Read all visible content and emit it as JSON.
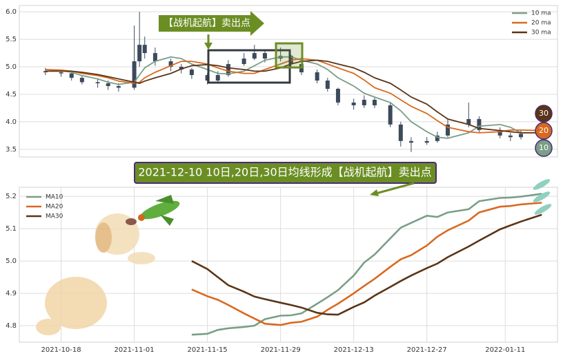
{
  "chart_data": [
    {
      "type": "candlestick",
      "annotation": "【战机起航】卖出点",
      "x": [
        "2021-10-15",
        "2021-10-18",
        "2021-10-20",
        "2021-10-22",
        "2021-10-25",
        "2021-10-27",
        "2021-10-29",
        "2021-11-01",
        "2021-11-02",
        "2021-11-03",
        "2021-11-05",
        "2021-11-08",
        "2021-11-10",
        "2021-11-12",
        "2021-11-15",
        "2021-11-17",
        "2021-11-19",
        "2021-11-22",
        "2021-11-24",
        "2021-11-26",
        "2021-11-29",
        "2021-12-01",
        "2021-12-03",
        "2021-12-06",
        "2021-12-08",
        "2021-12-10",
        "2021-12-13",
        "2021-12-15",
        "2021-12-17",
        "2021-12-20",
        "2021-12-22",
        "2021-12-24",
        "2021-12-27",
        "2021-12-29",
        "2021-12-31",
        "2022-01-04",
        "2022-01-06",
        "2022-01-10",
        "2022-01-12",
        "2022-01-14",
        "2022-01-18"
      ],
      "open": [
        4.92,
        4.9,
        4.88,
        4.8,
        4.72,
        4.7,
        4.65,
        4.62,
        5.1,
        5.4,
        5.25,
        5.1,
        5.0,
        4.95,
        4.85,
        4.75,
        4.85,
        5.05,
        5.15,
        5.25,
        5.15,
        5.2,
        5.05,
        4.9,
        4.75,
        4.6,
        4.35,
        4.3,
        4.4,
        4.3,
        3.95,
        3.65,
        3.62,
        3.65,
        3.75,
        3.95,
        4.05,
        3.85,
        3.75,
        3.72,
        3.78
      ],
      "high": [
        4.98,
        4.95,
        4.92,
        4.85,
        4.78,
        4.75,
        4.7,
        5.75,
        6.0,
        5.55,
        5.35,
        5.15,
        5.05,
        4.98,
        4.88,
        4.92,
        5.12,
        5.25,
        5.4,
        5.3,
        5.35,
        5.22,
        5.08,
        4.95,
        4.8,
        4.62,
        4.42,
        4.48,
        4.45,
        4.35,
        4.0,
        3.72,
        3.72,
        3.82,
        4.05,
        4.35,
        4.1,
        3.9,
        3.8,
        3.85,
        4.1
      ],
      "low": [
        4.85,
        4.82,
        4.75,
        4.68,
        4.62,
        4.58,
        4.55,
        4.58,
        5.0,
        5.15,
        5.02,
        4.92,
        4.88,
        4.78,
        4.68,
        4.7,
        4.82,
        5.02,
        5.12,
        5.08,
        5.1,
        4.98,
        4.85,
        4.7,
        4.55,
        4.3,
        4.22,
        4.25,
        4.25,
        3.9,
        3.55,
        3.45,
        3.58,
        3.62,
        3.72,
        3.9,
        3.8,
        3.7,
        3.65,
        3.68,
        3.75
      ],
      "close": [
        4.9,
        4.88,
        4.8,
        4.72,
        4.7,
        4.65,
        4.62,
        5.1,
        5.4,
        5.25,
        5.1,
        5.0,
        4.95,
        4.85,
        4.75,
        4.85,
        5.05,
        5.15,
        5.25,
        5.15,
        5.2,
        5.05,
        4.9,
        4.75,
        4.6,
        4.35,
        4.3,
        4.4,
        4.3,
        3.95,
        3.65,
        3.62,
        3.65,
        3.75,
        3.95,
        4.05,
        3.85,
        3.75,
        3.72,
        3.78,
        3.95
      ],
      "color": "#3d4a5c",
      "series": [
        {
          "name": "10 ma",
          "color": "#7a9e87",
          "values": [
            4.95,
            4.93,
            4.9,
            4.84,
            4.78,
            4.72,
            4.68,
            4.72,
            4.85,
            4.98,
            5.1,
            5.18,
            5.15,
            5.05,
            4.95,
            4.88,
            4.87,
            4.92,
            5.02,
            5.12,
            5.18,
            5.18,
            5.12,
            5.05,
            4.95,
            4.8,
            4.65,
            4.52,
            4.45,
            4.35,
            4.2,
            4.0,
            3.82,
            3.72,
            3.7,
            3.8,
            3.92,
            3.95,
            3.9,
            3.8,
            3.8
          ]
        },
        {
          "name": "20 ma",
          "color": "#d9691e",
          "values": [
            4.95,
            4.94,
            4.92,
            4.88,
            4.84,
            4.8,
            4.74,
            4.7,
            4.72,
            4.8,
            4.9,
            5.02,
            5.1,
            5.1,
            5.05,
            4.98,
            4.92,
            4.88,
            4.88,
            4.95,
            5.05,
            5.12,
            5.15,
            5.12,
            5.05,
            4.98,
            4.88,
            4.76,
            4.62,
            4.52,
            4.4,
            4.28,
            4.15,
            4.02,
            3.9,
            3.82,
            3.8,
            3.82,
            3.85,
            3.85,
            3.84
          ]
        },
        {
          "name": "30 ma",
          "color": "#5a3416",
          "values": [
            4.92,
            4.92,
            4.92,
            4.9,
            4.86,
            4.82,
            4.78,
            4.72,
            4.7,
            4.74,
            4.8,
            4.88,
            4.96,
            5.02,
            5.04,
            5.02,
            4.98,
            4.95,
            4.92,
            4.92,
            4.98,
            5.05,
            5.1,
            5.12,
            5.1,
            5.05,
            4.98,
            4.9,
            4.8,
            4.7,
            4.58,
            4.45,
            4.32,
            4.18,
            4.05,
            3.95,
            3.88,
            3.84,
            3.82,
            3.8,
            3.8
          ]
        }
      ],
      "end_badges": [
        "30",
        "20",
        "10"
      ],
      "xlim": [
        "2021-10-10",
        "2022-01-21"
      ],
      "ylim": [
        3.36,
        6.115
      ],
      "yticks": [
        {
          "value": 3.5,
          "label": "3.5"
        },
        {
          "value": 4,
          "label": "4.0"
        },
        {
          "value": 4.5,
          "label": "4.5"
        },
        {
          "value": 5,
          "label": "5.0"
        },
        {
          "value": 5.5,
          "label": "5.5"
        },
        {
          "value": 6,
          "label": "6.0"
        }
      ],
      "grid": true,
      "legend": "upper right"
    },
    {
      "type": "line",
      "annotation": "2021-12-10 10日,20日,30日均线形成【战机起航】卖出点",
      "x": [
        "2021-11-12",
        "2021-11-15",
        "2021-11-17",
        "2021-11-19",
        "2021-11-22",
        "2021-11-24",
        "2021-11-26",
        "2021-11-29",
        "2021-12-01",
        "2021-12-03",
        "2021-12-06",
        "2021-12-08",
        "2021-12-10",
        "2021-12-13",
        "2021-12-15",
        "2021-12-17",
        "2021-12-20",
        "2021-12-22",
        "2021-12-24",
        "2021-12-27",
        "2021-12-29",
        "2021-12-31",
        "2022-01-04",
        "2022-01-06",
        "2022-01-10",
        "2022-01-12",
        "2022-01-14",
        "2022-01-18"
      ],
      "series": [
        {
          "name": "MA10",
          "color": "#7a9e87",
          "values": [
            4.772,
            4.775,
            4.787,
            4.792,
            4.796,
            4.8,
            4.82,
            4.831,
            4.832,
            4.838,
            4.868,
            4.888,
            4.91,
            4.955,
            4.995,
            5.02,
            5.07,
            5.103,
            5.118,
            5.14,
            5.136,
            5.15,
            5.16,
            5.185,
            5.195,
            5.196,
            5.199,
            5.208
          ]
        },
        {
          "name": "MA20",
          "color": "#d9691e",
          "values": [
            4.912,
            4.891,
            4.88,
            4.864,
            4.838,
            4.822,
            4.806,
            4.802,
            4.809,
            4.812,
            4.828,
            4.849,
            4.868,
            4.9,
            4.923,
            4.945,
            4.982,
            5.005,
            5.018,
            5.048,
            5.075,
            5.095,
            5.125,
            5.15,
            5.168,
            5.17,
            5.175,
            5.18
          ]
        },
        {
          "name": "MA30",
          "color": "#5a3416",
          "values": [
            5.0,
            4.975,
            4.95,
            4.925,
            4.905,
            4.89,
            4.882,
            4.871,
            4.864,
            4.856,
            4.84,
            4.835,
            4.834,
            4.858,
            4.872,
            4.893,
            4.92,
            4.938,
            4.955,
            4.978,
            4.992,
            5.012,
            5.045,
            5.063,
            5.098,
            5.11,
            5.122,
            5.143
          ]
        }
      ],
      "xlim": [
        "2021-10-10",
        "2022-01-21"
      ],
      "xticks": [
        "2021-10-18",
        "2021-11-01",
        "2021-11-15",
        "2021-11-29",
        "2021-12-13",
        "2021-12-27",
        "2022-01-11"
      ],
      "ylim": [
        4.749,
        5.228
      ],
      "yticks": [
        4.8,
        4.9,
        {
          "value": 5,
          "label": "5.0"
        },
        5.1,
        5.2
      ],
      "grid": true,
      "legend": "upper left"
    }
  ]
}
